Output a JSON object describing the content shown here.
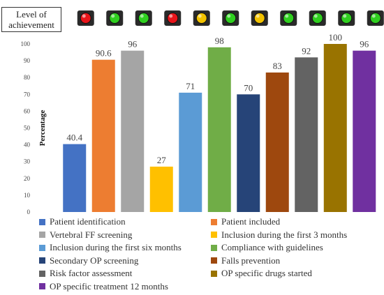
{
  "level_label": "Level of achievement",
  "chart_data": {
    "type": "bar",
    "title": "",
    "ylabel": "Percentage",
    "xlabel": "",
    "ylim": [
      0,
      100
    ],
    "yticks": [
      0,
      10,
      20,
      30,
      40,
      50,
      60,
      70,
      80,
      90,
      100
    ],
    "grid": false,
    "legend_position": "bottom",
    "categories": [
      "Patient identification",
      "Patient included",
      "Vertebral FF screening",
      "Inclusion during the first 3 months",
      "Inclusion during the first six months",
      "Compliance with guidelines",
      "Secondary OP screening",
      "Falls prevention",
      "Risk factor assessment",
      "OP specific drugs started",
      "OP specific treatment 12 months"
    ],
    "values": [
      40.4,
      90.6,
      96,
      27,
      71,
      98,
      70,
      83,
      92,
      100,
      96
    ],
    "value_labels": [
      "40.4",
      "90.6",
      "96",
      "27",
      "71",
      "98",
      "70",
      "83",
      "92",
      "100",
      "96"
    ],
    "colors": [
      "#4472c4",
      "#ed7d31",
      "#a5a5a5",
      "#ffc000",
      "#5b9bd5",
      "#70ad47",
      "#264478",
      "#9e480e",
      "#636363",
      "#997300",
      "#7030a0"
    ],
    "achievement_lights": [
      "red",
      "green",
      "green",
      "red",
      "yellow",
      "green",
      "yellow",
      "green",
      "green",
      "green",
      "green"
    ]
  },
  "light_colors": {
    "red": "#e8141a",
    "green": "#2fcf1f",
    "yellow": "#f2c200"
  }
}
